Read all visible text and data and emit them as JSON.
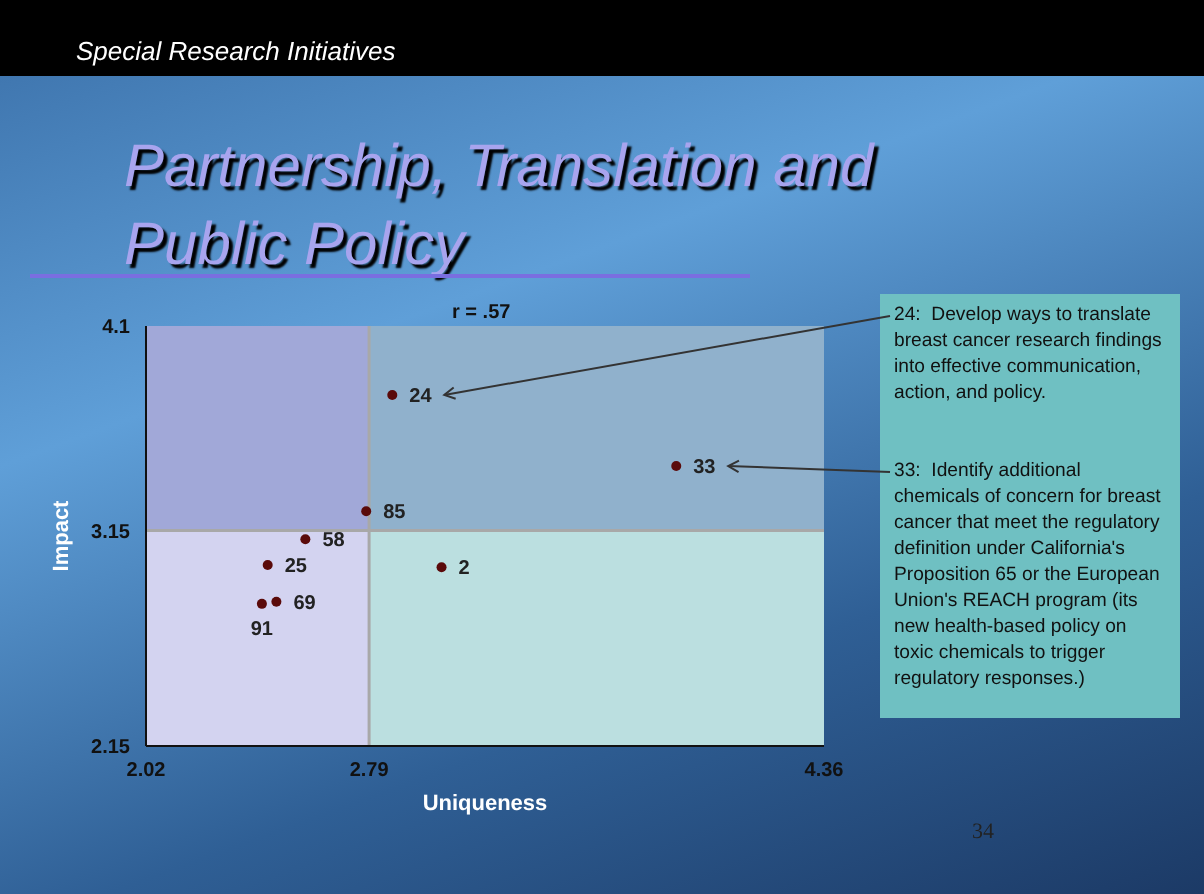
{
  "chart_data": {
    "type": "scatter",
    "title": "Partnership, Translation and Public Policy",
    "subtitle": "Special Research Initiatives",
    "xlabel": "Uniqueness",
    "ylabel": "Impact",
    "series": [
      {
        "name": "24",
        "color": "#5a0a0a",
        "x": [
          2.87
        ],
        "values": [
          3.78
        ]
      },
      {
        "name": "33",
        "color": "#5a0a0a",
        "x": [
          3.85
        ],
        "values": [
          3.45
        ]
      },
      {
        "name": "85",
        "color": "#5a0a0a",
        "x": [
          2.78
        ],
        "values": [
          3.24
        ]
      },
      {
        "name": "58",
        "color": "#5a0a0a",
        "x": [
          2.57
        ],
        "values": [
          3.11
        ]
      },
      {
        "name": "25",
        "color": "#5a0a0a",
        "x": [
          2.44
        ],
        "values": [
          2.99
        ]
      },
      {
        "name": "2",
        "color": "#5a0a0a",
        "x": [
          3.04
        ],
        "values": [
          2.98
        ]
      },
      {
        "name": "69",
        "color": "#5a0a0a",
        "x": [
          2.47
        ],
        "values": [
          2.82
        ]
      },
      {
        "name": "91",
        "color": "#5a0a0a",
        "x": [
          2.42
        ],
        "values": [
          2.81
        ]
      }
    ],
    "xlim": [
      2.02,
      4.36
    ],
    "xticks": [
      2.02,
      2.79,
      4.36
    ],
    "ylim": [
      2.15,
      4.1
    ],
    "yticks": [
      2.15,
      3.15,
      4.1
    ],
    "grid": false,
    "legend": false,
    "marker": "circle",
    "bands": [
      {
        "axis": "x",
        "from": 2.02,
        "to": 2.79,
        "color": "#d3d3f0"
      },
      {
        "axis": "x",
        "from": 2.79,
        "to": 4.36,
        "color": "#bbdfe0"
      },
      {
        "axis": "y",
        "from": 3.15,
        "to": 4.1,
        "color": "#20389a"
      }
    ],
    "ref_lines": [
      {
        "axis": "x",
        "value": 2.79,
        "color": "#a8a8a8"
      },
      {
        "axis": "y",
        "value": 3.15,
        "color": "#a8a8a8"
      }
    ],
    "annotations": [
      "r = .57",
      "24:  Develop ways to translate breast cancer research findings into effective communication, action, and policy.",
      "33:  Identify additional chemicals of concern for breast cancer that meet the regulatory definition under California's Proposition 65 or the European Union's REACH program (its new health-based policy on toxic chemicals to trigger regulatory responses.)",
      "34"
    ]
  }
}
